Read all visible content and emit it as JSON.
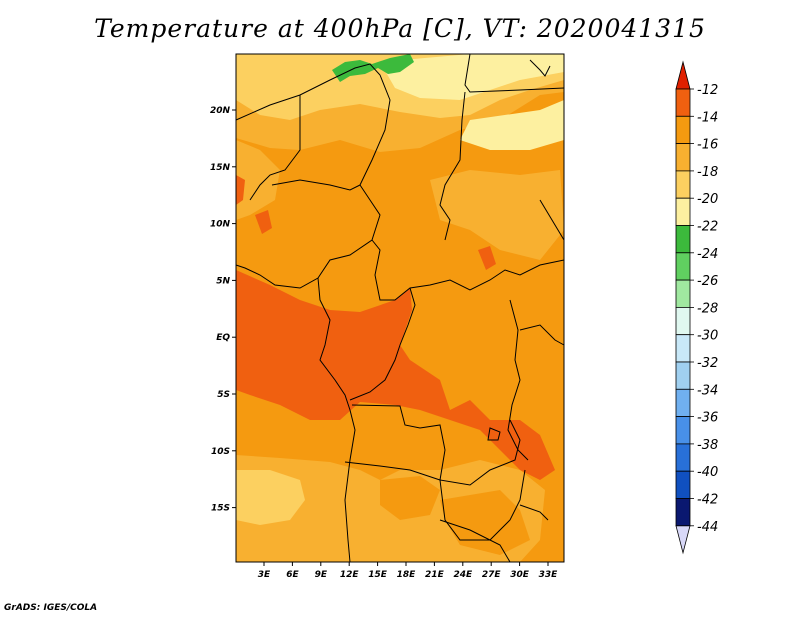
{
  "title": "Temperature at 400hPa [C], VT: 2020041315",
  "credit": "GrADS: IGES/COLA",
  "axes": {
    "lon_ticks": [
      "3E",
      "6E",
      "9E",
      "12E",
      "15E",
      "18E",
      "21E",
      "24E",
      "27E",
      "30E",
      "33E"
    ],
    "lat_ticks": [
      "20N",
      "15N",
      "10N",
      "5N",
      "EQ",
      "5S",
      "10S",
      "15S"
    ]
  },
  "colorbar": {
    "labels": [
      "-12",
      "-14",
      "-16",
      "-18",
      "-20",
      "-22",
      "-24",
      "-26",
      "-28",
      "-30",
      "-32",
      "-34",
      "-36",
      "-38",
      "-40",
      "-42",
      "-44"
    ],
    "colors": [
      "#e02000",
      "#f06010",
      "#f59a10",
      "#f8b030",
      "#fcd060",
      "#fdf0a0",
      "#3cba3c",
      "#60d060",
      "#a0e8a0",
      "#e0f8f0",
      "#c8e8f8",
      "#a0d0f0",
      "#70b0f0",
      "#4890e8",
      "#2870d8",
      "#1050c0",
      "#0a1870",
      "#d8d8f8"
    ]
  },
  "colors": {
    "land_dark": "#f06010",
    "land_mid": "#f59a10",
    "land_light": "#f8b030",
    "land_pale": "#fcd060",
    "land_verypale": "#fdf0a0",
    "green": "#3cba3c"
  }
}
